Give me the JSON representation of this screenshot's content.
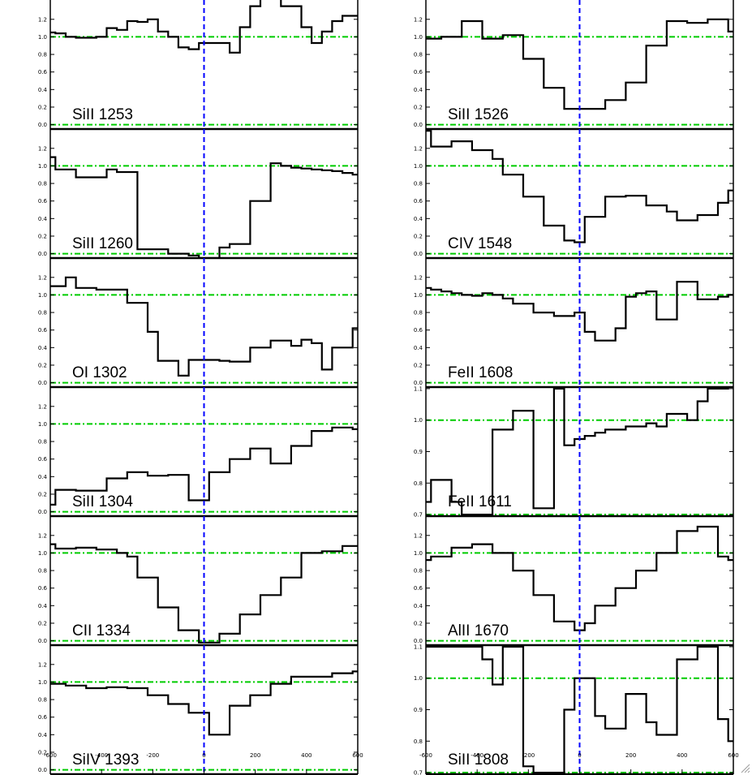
{
  "chart_data": [
    {
      "type": "line",
      "label": "SiII 1253",
      "ylim": [
        -0.05,
        1.42
      ],
      "yticks": [
        "0.0",
        "0.2",
        "0.4",
        "0.6",
        "0.8",
        "1.0",
        "1.2"
      ],
      "xlim": [
        -600,
        600
      ],
      "xticks": [
        "-600",
        "-400",
        "-200",
        "0",
        "200",
        "400",
        "600"
      ],
      "reference_lines": [
        0,
        1
      ],
      "zero_velocity": 0,
      "x": [
        -600,
        -560,
        -520,
        -480,
        -440,
        -400,
        -360,
        -320,
        -280,
        -240,
        -200,
        -160,
        -120,
        -80,
        -40,
        0,
        40,
        80,
        120,
        160,
        200,
        240,
        280,
        320,
        360,
        400,
        440,
        480,
        520,
        560,
        600
      ],
      "y": [
        1.05,
        1.04,
        1.0,
        0.99,
        0.99,
        1.0,
        1.1,
        1.08,
        1.18,
        1.17,
        1.2,
        1.06,
        1.0,
        0.88,
        0.86,
        0.93,
        0.93,
        0.93,
        0.82,
        1.11,
        1.35,
        1.5,
        1.49,
        1.35,
        1.35,
        1.11,
        0.93,
        1.06,
        1.18,
        1.24,
        1.24
      ]
    },
    {
      "type": "line",
      "label": "SiII 1260",
      "ylim": [
        -0.05,
        1.42
      ],
      "yticks": [
        "0.0",
        "0.2",
        "0.4",
        "0.6",
        "0.8",
        "1.0",
        "1.2"
      ],
      "xlim": [
        -600,
        600
      ],
      "xticks": [
        "-600",
        "-400",
        "-200",
        "0",
        "200",
        "400",
        "600"
      ],
      "reference_lines": [
        0,
        1
      ],
      "zero_velocity": 0,
      "x": [
        -600,
        -560,
        -520,
        -480,
        -440,
        -400,
        -360,
        -320,
        -280,
        -240,
        -200,
        -160,
        -120,
        -80,
        -40,
        0,
        40,
        80,
        120,
        160,
        200,
        240,
        280,
        320,
        360,
        400,
        440,
        480,
        520,
        560,
        600
      ],
      "y": [
        1.1,
        0.96,
        0.96,
        0.87,
        0.87,
        0.87,
        0.96,
        0.93,
        0.93,
        0.05,
        0.05,
        0.05,
        0.0,
        0.0,
        -0.02,
        -0.05,
        -0.05,
        0.07,
        0.11,
        0.11,
        0.6,
        0.6,
        1.03,
        1.0,
        0.98,
        0.97,
        0.96,
        0.95,
        0.94,
        0.92,
        0.9
      ]
    },
    {
      "type": "line",
      "label": "OI 1302",
      "ylim": [
        -0.05,
        1.42
      ],
      "yticks": [
        "0.0",
        "0.2",
        "0.4",
        "0.6",
        "0.8",
        "1.0",
        "1.2"
      ],
      "xlim": [
        -600,
        600
      ],
      "xticks": [
        "-600",
        "-400",
        "-200",
        "0",
        "200",
        "400",
        "600"
      ],
      "reference_lines": [
        0,
        1
      ],
      "zero_velocity": 0,
      "x": [
        -600,
        -560,
        -520,
        -480,
        -440,
        -400,
        -360,
        -320,
        -280,
        -240,
        -200,
        -160,
        -120,
        -80,
        -40,
        0,
        40,
        80,
        120,
        160,
        200,
        240,
        280,
        320,
        360,
        400,
        440,
        480,
        520,
        560,
        600
      ],
      "y": [
        1.1,
        1.1,
        1.2,
        1.08,
        1.08,
        1.06,
        1.06,
        1.06,
        0.91,
        0.91,
        0.58,
        0.25,
        0.25,
        0.08,
        0.26,
        0.26,
        0.26,
        0.25,
        0.24,
        0.24,
        0.4,
        0.4,
        0.48,
        0.48,
        0.42,
        0.49,
        0.45,
        0.15,
        0.4,
        0.4,
        0.62
      ]
    },
    {
      "type": "line",
      "label": "SiII 1304",
      "ylim": [
        -0.05,
        1.42
      ],
      "yticks": [
        "0.0",
        "0.2",
        "0.4",
        "0.6",
        "0.8",
        "1.0",
        "1.2"
      ],
      "xlim": [
        -600,
        600
      ],
      "xticks": [
        "-600",
        "-400",
        "-200",
        "0",
        "200",
        "400",
        "600"
      ],
      "reference_lines": [
        0,
        1
      ],
      "zero_velocity": 0,
      "x": [
        -600,
        -560,
        -520,
        -480,
        -440,
        -400,
        -360,
        -320,
        -280,
        -240,
        -200,
        -160,
        -120,
        -80,
        -40,
        0,
        40,
        80,
        120,
        160,
        200,
        240,
        280,
        320,
        360,
        400,
        440,
        480,
        520,
        560,
        600
      ],
      "y": [
        0.08,
        0.25,
        0.25,
        0.24,
        0.24,
        0.24,
        0.38,
        0.38,
        0.45,
        0.45,
        0.41,
        0.41,
        0.42,
        0.42,
        0.13,
        0.13,
        0.45,
        0.45,
        0.6,
        0.6,
        0.72,
        0.72,
        0.55,
        0.55,
        0.75,
        0.75,
        0.92,
        0.92,
        0.96,
        0.96,
        0.94
      ]
    },
    {
      "type": "line",
      "label": "CII 1334",
      "ylim": [
        -0.05,
        1.42
      ],
      "yticks": [
        "0.0",
        "0.2",
        "0.4",
        "0.6",
        "0.8",
        "1.0",
        "1.2"
      ],
      "xlim": [
        -600,
        600
      ],
      "xticks": [
        "-600",
        "-400",
        "-200",
        "0",
        "200",
        "400",
        "600"
      ],
      "reference_lines": [
        0,
        1
      ],
      "zero_velocity": 0,
      "x": [
        -600,
        -560,
        -520,
        -480,
        -440,
        -400,
        -360,
        -320,
        -280,
        -240,
        -200,
        -160,
        -120,
        -80,
        -40,
        0,
        40,
        80,
        120,
        160,
        200,
        240,
        280,
        320,
        360,
        400,
        440,
        480,
        520,
        560,
        600
      ],
      "y": [
        1.1,
        1.05,
        1.05,
        1.06,
        1.06,
        1.04,
        1.04,
        1.0,
        0.96,
        0.72,
        0.72,
        0.38,
        0.38,
        0.12,
        0.12,
        -0.02,
        -0.02,
        0.08,
        0.08,
        0.3,
        0.3,
        0.52,
        0.52,
        0.72,
        0.72,
        1.0,
        1.0,
        1.02,
        1.02,
        1.08,
        1.08
      ]
    },
    {
      "type": "line",
      "label": "SiIV 1393",
      "ylim": [
        -0.05,
        1.42
      ],
      "yticks": [
        "0.0",
        "0.2",
        "0.4",
        "0.6",
        "0.8",
        "1.0",
        "1.2"
      ],
      "xlim": [
        -600,
        600
      ],
      "xticks": [
        "-600",
        "-400",
        "-200",
        "0",
        "200",
        "400",
        "600"
      ],
      "reference_lines": [
        0,
        1
      ],
      "zero_velocity": 0,
      "x": [
        -600,
        -560,
        -520,
        -480,
        -440,
        -400,
        -360,
        -320,
        -280,
        -240,
        -200,
        -160,
        -120,
        -80,
        -40,
        0,
        40,
        80,
        120,
        160,
        200,
        240,
        280,
        320,
        360,
        400,
        440,
        480,
        520,
        560,
        600
      ],
      "y": [
        0.98,
        0.98,
        0.96,
        0.96,
        0.93,
        0.93,
        0.94,
        0.94,
        0.93,
        0.93,
        0.85,
        0.85,
        0.75,
        0.75,
        0.65,
        0.65,
        0.4,
        0.4,
        0.73,
        0.73,
        0.85,
        0.85,
        0.98,
        0.98,
        1.06,
        1.06,
        1.06,
        1.06,
        1.1,
        1.1,
        1.12
      ]
    },
    {
      "type": "line",
      "label": "SiII 1526",
      "ylim": [
        -0.05,
        1.42
      ],
      "yticks": [
        "0.0",
        "0.2",
        "0.4",
        "0.6",
        "0.8",
        "1.0",
        "1.2"
      ],
      "xlim": [
        -600,
        600
      ],
      "xticks": [
        "-600",
        "-400",
        "-200",
        "0",
        "200",
        "400",
        "600"
      ],
      "reference_lines": [
        0,
        1
      ],
      "zero_velocity": 0,
      "x": [
        -600,
        -560,
        -520,
        -480,
        -440,
        -400,
        -360,
        -320,
        -280,
        -240,
        -200,
        -160,
        -120,
        -80,
        -40,
        0,
        40,
        80,
        120,
        160,
        200,
        240,
        280,
        320,
        360,
        400,
        440,
        480,
        520,
        560,
        600
      ],
      "y": [
        0.98,
        0.98,
        1.0,
        1.0,
        1.18,
        1.18,
        0.98,
        0.98,
        1.02,
        1.02,
        0.75,
        0.75,
        0.42,
        0.42,
        0.18,
        0.18,
        0.18,
        0.18,
        0.28,
        0.28,
        0.48,
        0.48,
        0.9,
        0.9,
        1.18,
        1.18,
        1.16,
        1.16,
        1.2,
        1.2,
        1.06
      ]
    },
    {
      "type": "line",
      "label": "CIV 1548",
      "ylim": [
        -0.05,
        1.42
      ],
      "yticks": [
        "0.0",
        "0.2",
        "0.4",
        "0.6",
        "0.8",
        "1.0",
        "1.2"
      ],
      "xlim": [
        -600,
        600
      ],
      "xticks": [
        "-600",
        "-400",
        "-200",
        "0",
        "200",
        "400",
        "600"
      ],
      "reference_lines": [
        0,
        1
      ],
      "zero_velocity": 0,
      "x": [
        -600,
        -560,
        -520,
        -480,
        -440,
        -400,
        -360,
        -320,
        -280,
        -240,
        -200,
        -160,
        -120,
        -80,
        -40,
        0,
        40,
        80,
        120,
        160,
        200,
        240,
        280,
        320,
        360,
        400,
        440,
        480,
        520,
        560,
        600
      ],
      "y": [
        1.4,
        1.22,
        1.22,
        1.28,
        1.28,
        1.18,
        1.18,
        1.08,
        0.9,
        0.9,
        0.65,
        0.65,
        0.32,
        0.32,
        0.15,
        0.13,
        0.42,
        0.42,
        0.65,
        0.65,
        0.66,
        0.66,
        0.55,
        0.55,
        0.48,
        0.38,
        0.38,
        0.44,
        0.44,
        0.58,
        0.72
      ]
    },
    {
      "type": "line",
      "label": "FeII 1608",
      "ylim": [
        -0.05,
        1.42
      ],
      "yticks": [
        "0.0",
        "0.2",
        "0.4",
        "0.6",
        "0.8",
        "1.0",
        "1.2"
      ],
      "xlim": [
        -600,
        600
      ],
      "xticks": [
        "-600",
        "-400",
        "-200",
        "0",
        "200",
        "400",
        "600"
      ],
      "reference_lines": [
        0,
        1
      ],
      "zero_velocity": 0,
      "x": [
        -600,
        -560,
        -520,
        -480,
        -440,
        -400,
        -360,
        -320,
        -280,
        -240,
        -200,
        -160,
        -120,
        -80,
        -40,
        0,
        40,
        80,
        120,
        160,
        200,
        240,
        280,
        320,
        360,
        400,
        440,
        480,
        520,
        560,
        600
      ],
      "y": [
        1.08,
        1.06,
        1.04,
        1.02,
        1.0,
        0.99,
        1.02,
        1.0,
        0.96,
        0.9,
        0.9,
        0.8,
        0.8,
        0.76,
        0.76,
        0.8,
        0.58,
        0.48,
        0.48,
        0.62,
        0.98,
        1.02,
        1.04,
        0.72,
        0.72,
        1.15,
        1.15,
        0.95,
        0.95,
        0.98,
        1.0
      ]
    },
    {
      "type": "line",
      "label": "FeII 1611",
      "ylim": [
        0.695,
        1.105
      ],
      "yticks": [
        "0.7",
        "0.8",
        "0.9",
        "1.0",
        "1.1"
      ],
      "xlim": [
        -600,
        600
      ],
      "xticks": [
        "-600",
        "-400",
        "-200",
        "0",
        "200",
        "400",
        "600"
      ],
      "reference_lines": [
        0.7,
        1
      ],
      "zero_velocity": 0,
      "x": [
        -600,
        -560,
        -520,
        -480,
        -440,
        -400,
        -360,
        -320,
        -280,
        -240,
        -200,
        -160,
        -120,
        -80,
        -40,
        0,
        40,
        80,
        120,
        160,
        200,
        240,
        280,
        320,
        360,
        400,
        440,
        480,
        520,
        560,
        600
      ],
      "y": [
        0.74,
        0.81,
        0.81,
        0.74,
        0.7,
        0.7,
        0.7,
        0.97,
        0.97,
        1.03,
        1.03,
        0.72,
        0.72,
        1.1,
        0.92,
        0.94,
        0.95,
        0.96,
        0.97,
        0.97,
        0.98,
        0.98,
        0.99,
        0.98,
        1.02,
        1.02,
        1.0,
        1.06,
        1.1,
        1.1,
        1.12
      ]
    },
    {
      "type": "line",
      "label": "AlII 1670",
      "ylim": [
        -0.05,
        1.42
      ],
      "yticks": [
        "0.0",
        "0.2",
        "0.4",
        "0.6",
        "0.8",
        "1.0",
        "1.2"
      ],
      "xlim": [
        -600,
        600
      ],
      "xticks": [
        "-600",
        "-400",
        "-200",
        "0",
        "200",
        "400",
        "600"
      ],
      "reference_lines": [
        0,
        1
      ],
      "zero_velocity": 0,
      "x": [
        -600,
        -560,
        -520,
        -480,
        -440,
        -400,
        -360,
        -320,
        -280,
        -240,
        -200,
        -160,
        -120,
        -80,
        -40,
        0,
        40,
        80,
        120,
        160,
        200,
        240,
        280,
        320,
        360,
        400,
        440,
        480,
        520,
        560,
        600
      ],
      "y": [
        0.92,
        0.96,
        0.96,
        1.06,
        1.06,
        1.1,
        1.1,
        1.0,
        1.0,
        0.8,
        0.8,
        0.52,
        0.52,
        0.22,
        0.22,
        0.12,
        0.2,
        0.4,
        0.4,
        0.6,
        0.6,
        0.8,
        0.8,
        1.0,
        1.0,
        1.25,
        1.25,
        1.3,
        1.3,
        0.96,
        0.92
      ]
    },
    {
      "type": "line",
      "label": "SiII 1808",
      "ylim": [
        0.695,
        1.105
      ],
      "yticks": [
        "0.7",
        "0.8",
        "0.9",
        "1.0",
        "1.1"
      ],
      "xlim": [
        -600,
        600
      ],
      "xticks": [
        "-600",
        "-400",
        "-200",
        "0",
        "200",
        "400",
        "600"
      ],
      "reference_lines": [
        0.7,
        1
      ],
      "zero_velocity": 0,
      "x": [
        -600,
        -560,
        -520,
        -480,
        -440,
        -400,
        -360,
        -320,
        -280,
        -240,
        -200,
        -160,
        -120,
        -80,
        -40,
        0,
        40,
        80,
        120,
        160,
        200,
        240,
        280,
        320,
        360,
        400,
        440,
        480,
        520,
        560,
        600
      ],
      "y": [
        1.1,
        1.1,
        1.1,
        1.1,
        1.1,
        1.1,
        1.06,
        0.98,
        1.1,
        1.1,
        0.72,
        0.7,
        0.7,
        0.7,
        0.9,
        1.0,
        1.0,
        0.88,
        0.84,
        0.84,
        0.95,
        0.95,
        0.86,
        0.82,
        0.82,
        1.06,
        1.06,
        1.1,
        1.1,
        0.87,
        0.8
      ]
    }
  ],
  "colors": {
    "spectrum": "#000000",
    "continuum": "#00cc00",
    "zero_velocity": "#0000ff",
    "frame": "#000000"
  },
  "icons": {
    "resize_grip": "resize-grip-icon"
  }
}
